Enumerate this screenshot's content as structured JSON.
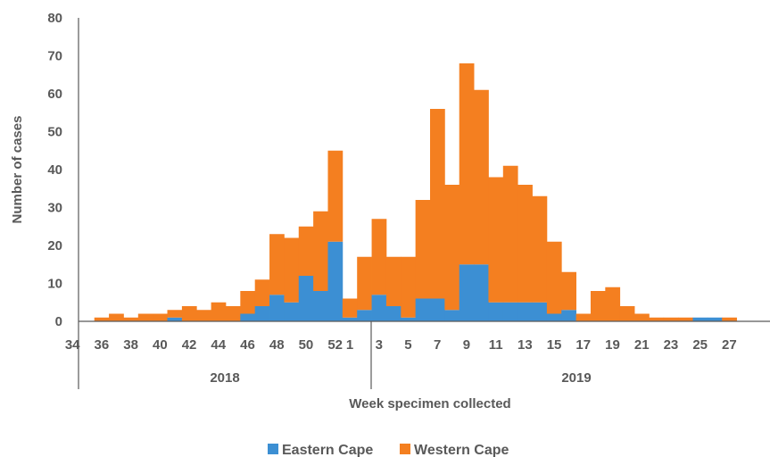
{
  "chart_data": {
    "type": "bar",
    "stacked": true,
    "xlabel": "Week specimen collected",
    "ylabel": "Number of cases",
    "ylim": [
      0,
      80
    ],
    "yticks": [
      0,
      10,
      20,
      30,
      40,
      50,
      60,
      70,
      80
    ],
    "grid": false,
    "legend": "bottom",
    "categories": [
      "34",
      "35",
      "36",
      "37",
      "38",
      "39",
      "40",
      "41",
      "42",
      "43",
      "44",
      "45",
      "46",
      "47",
      "48",
      "49",
      "50",
      "51",
      "52",
      "1",
      "2",
      "3",
      "4",
      "5",
      "6",
      "7",
      "8",
      "9",
      "10",
      "11",
      "12",
      "13",
      "14",
      "15",
      "16",
      "17",
      "18",
      "19",
      "20",
      "21",
      "22",
      "23",
      "24",
      "25",
      "26",
      "27"
    ],
    "tick_labels": [
      "34",
      "36",
      "38",
      "40",
      "42",
      "44",
      "46",
      "48",
      "50",
      "52",
      "1",
      "3",
      "5",
      "7",
      "9",
      "11",
      "13",
      "15",
      "17",
      "19",
      "21",
      "23",
      "25",
      "27"
    ],
    "year_groups": [
      {
        "label": "2018",
        "first_week": "34",
        "last_week": "52"
      },
      {
        "label": "2019",
        "first_week": "1",
        "last_week": "27"
      }
    ],
    "series": [
      {
        "name": "Eastern Cape",
        "color": "#3C8FD3",
        "values": [
          0,
          0,
          0,
          0,
          0,
          0,
          0,
          1,
          0,
          0,
          0,
          0,
          2,
          4,
          7,
          5,
          12,
          8,
          21,
          1,
          3,
          7,
          4,
          1,
          6,
          6,
          3,
          15,
          15,
          5,
          5,
          5,
          5,
          2,
          3,
          0,
          0,
          0,
          0,
          0,
          0,
          0,
          0,
          1,
          1,
          0
        ]
      },
      {
        "name": "Western Cape",
        "color": "#F47F20",
        "values": [
          0,
          0,
          1,
          2,
          1,
          2,
          2,
          2,
          4,
          3,
          5,
          4,
          6,
          7,
          16,
          17,
          13,
          21,
          24,
          5,
          14,
          20,
          13,
          16,
          26,
          50,
          33,
          53,
          46,
          33,
          36,
          31,
          28,
          19,
          10,
          2,
          8,
          9,
          4,
          2,
          1,
          1,
          1,
          0,
          0,
          1
        ]
      }
    ]
  }
}
